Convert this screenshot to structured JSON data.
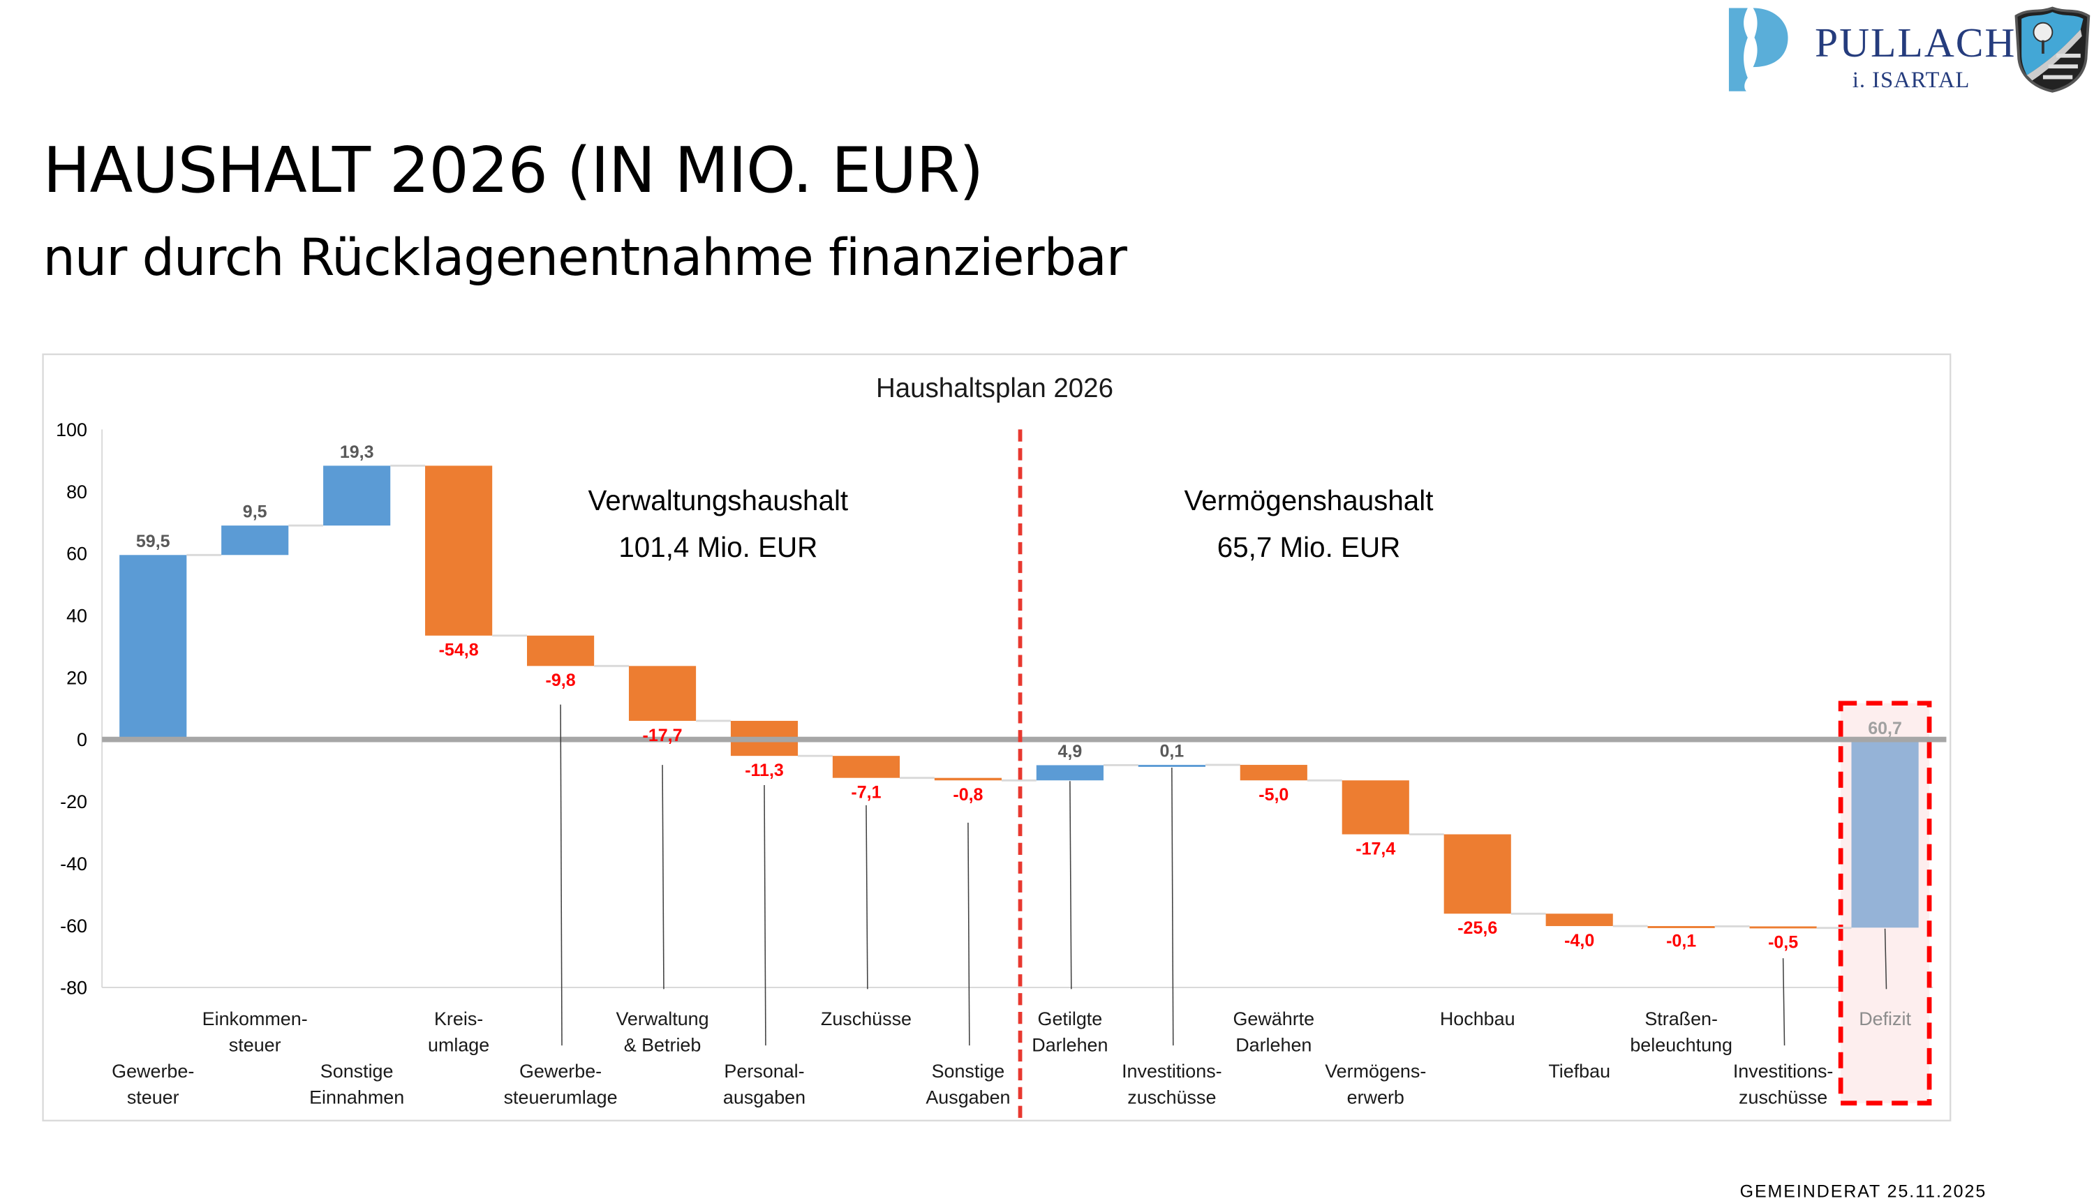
{
  "header": {
    "title": "HAUSHALT 2026 (IN MIO. EUR)",
    "subtitle": "nur durch Rücklagenentnahme finanzierbar",
    "logo": {
      "name": "PULLACH",
      "subname": "i. ISARTAL",
      "icon": "pullach-p-logo",
      "crest": "coat-of-arms-icon"
    }
  },
  "footer": {
    "text": "GEMEINDERAT 25.11.2025"
  },
  "chart_data": {
    "type": "waterfall",
    "title": "Haushaltsplan 2026",
    "ylim": [
      -80,
      100
    ],
    "yticks": [
      100,
      80,
      60,
      40,
      20,
      0,
      -20,
      -40,
      -60,
      -80
    ],
    "grid": false,
    "sections": [
      {
        "name": "Verwaltungshaushalt",
        "total": "101,4 Mio. EUR"
      },
      {
        "name": "Vermögenshaushalt",
        "total": "65,7 Mio. EUR"
      }
    ],
    "categories": [
      [
        "Gewerbe-",
        "steuer"
      ],
      [
        "Einkommen-",
        "steuer"
      ],
      [
        "Sonstige",
        "Einnahmen"
      ],
      [
        "Kreis-",
        "umlage"
      ],
      [
        "Gewerbe-",
        "steuerumlage"
      ],
      [
        "Verwaltung",
        "& Betrieb"
      ],
      [
        "Personal-",
        "ausgaben"
      ],
      [
        "Zuschüsse"
      ],
      [
        "Sonstige",
        "Ausgaben"
      ],
      [
        "Getilgte",
        "Darlehen"
      ],
      [
        "Investitions-",
        "zuschüsse"
      ],
      [
        "Gewährte",
        "Darlehen"
      ],
      [
        "Vermögens-",
        "erwerb"
      ],
      [
        "Hochbau"
      ],
      [
        "Tiefbau"
      ],
      [
        "Straßen-",
        "beleuchtung"
      ],
      [
        "Investitions-",
        "zuschüsse"
      ],
      [
        "Defizit"
      ]
    ],
    "values": [
      59.5,
      9.5,
      19.3,
      -54.8,
      -9.8,
      -17.7,
      -11.3,
      -7.1,
      -0.8,
      4.9,
      0.1,
      -5.0,
      -17.4,
      -25.6,
      -4.0,
      -0.1,
      -0.5,
      60.7
    ],
    "value_labels": [
      "59,5",
      "9,5",
      "19,3",
      "-54,8",
      "-9,8",
      "-17,7",
      "-11,3",
      "-7,1",
      "-0,8",
      "4,9",
      "0,1",
      "-5,0",
      "-17,4",
      "-25,6",
      "-4,0",
      "-0,1",
      "-0,5",
      "60,7"
    ],
    "total_index": 17,
    "colors": {
      "increase": "#5B9BD5",
      "decrease": "#ED7D31",
      "total": "#95B3D7",
      "negative_label": "#FF0000",
      "positive_label": "#595959",
      "divider": "#E8382F",
      "highlight": "#FF0000"
    }
  }
}
